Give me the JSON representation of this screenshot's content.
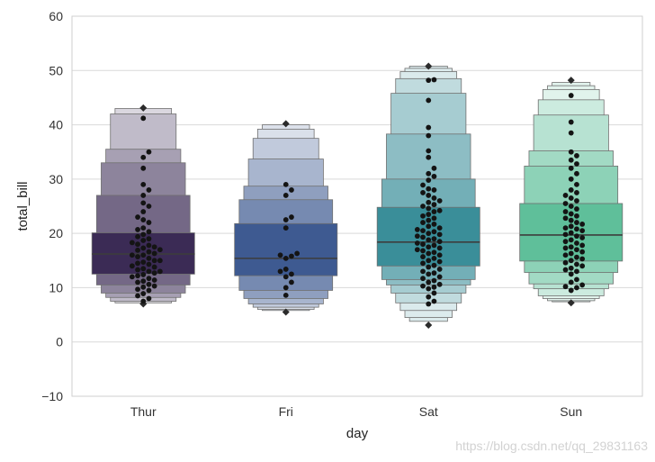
{
  "chart_data": {
    "type": "boxen",
    "xlabel": "day",
    "ylabel": "total_bill",
    "ylim": [
      -10,
      60
    ],
    "yticks": [
      -10,
      0,
      10,
      20,
      30,
      40,
      50,
      60
    ],
    "grid": true,
    "categories": [
      "Thur",
      "Fri",
      "Sat",
      "Sun"
    ],
    "colors": [
      "#3b2b55",
      "#3e5a91",
      "#3a8e99",
      "#5fbf9a"
    ],
    "series": [
      {
        "category": "Thur",
        "median": 16.2,
        "boxes": [
          [
            12.5,
            20.1
          ],
          [
            10.5,
            27.0
          ],
          [
            9.0,
            33.0
          ],
          [
            8.2,
            35.5
          ],
          [
            7.5,
            42.0
          ],
          [
            7.2,
            43.0
          ]
        ],
        "outliers": [
          43.1,
          7.0
        ],
        "points": [
          7.5,
          8.0,
          8.5,
          8.9,
          9.5,
          9.7,
          10.1,
          10.3,
          10.6,
          11.0,
          11.2,
          11.4,
          11.7,
          12.0,
          12.2,
          12.4,
          12.7,
          13.0,
          13.0,
          13.3,
          13.5,
          13.8,
          14.0,
          14.3,
          14.5,
          14.7,
          15.0,
          15.0,
          15.4,
          15.7,
          16.0,
          16.0,
          16.3,
          16.6,
          16.9,
          17.0,
          17.3,
          17.5,
          17.8,
          18.0,
          18.3,
          18.7,
          19.0,
          19.4,
          19.8,
          20.3,
          20.7,
          21.0,
          22.0,
          22.5,
          23.0,
          24.0,
          25.0,
          25.6,
          27.0,
          28.0,
          29.0,
          32.0,
          34.0,
          35.0,
          41.2
        ]
      },
      {
        "category": "Fri",
        "median": 15.4,
        "boxes": [
          [
            12.2,
            21.8
          ],
          [
            9.5,
            26.2
          ],
          [
            8.0,
            28.7
          ],
          [
            7.0,
            33.7
          ],
          [
            6.4,
            37.5
          ],
          [
            6.0,
            39.2
          ],
          [
            5.8,
            40.0
          ]
        ],
        "outliers": [
          40.2,
          5.5
        ],
        "points": [
          8.6,
          10.0,
          11.0,
          12.0,
          12.5,
          13.0,
          13.4,
          15.4,
          15.8,
          16.0,
          16.3,
          21.0,
          22.5,
          23.0,
          27.0,
          28.0,
          29.0
        ]
      },
      {
        "category": "Sat",
        "median": 18.4,
        "boxes": [
          [
            14.0,
            24.8
          ],
          [
            11.5,
            30.0
          ],
          [
            10.5,
            38.3
          ],
          [
            9.0,
            45.8
          ],
          [
            7.2,
            48.5
          ],
          [
            5.8,
            49.8
          ],
          [
            4.5,
            50.4
          ],
          [
            3.8,
            50.8
          ]
        ],
        "outliers": [
          50.8,
          3.1
        ],
        "points": [
          7.0,
          7.5,
          8.3,
          9.0,
          9.8,
          10.1,
          10.3,
          10.6,
          11.0,
          11.3,
          11.7,
          12.0,
          12.5,
          12.7,
          13.0,
          13.4,
          13.8,
          14.1,
          14.5,
          14.8,
          15.0,
          15.4,
          15.7,
          16.0,
          16.3,
          16.5,
          16.8,
          17.0,
          17.3,
          17.5,
          17.8,
          18.0,
          18.2,
          18.5,
          18.8,
          19.0,
          19.3,
          19.5,
          19.8,
          20.0,
          20.3,
          20.5,
          20.7,
          21.0,
          21.3,
          21.7,
          22.0,
          22.4,
          22.8,
          23.2,
          23.5,
          24.0,
          24.2,
          24.6,
          25.0,
          25.3,
          25.7,
          26.0,
          26.5,
          27.0,
          27.5,
          28.0,
          28.2,
          28.9,
          29.8,
          30.5,
          31.0,
          32.0,
          34.0,
          35.2,
          38.0,
          39.5,
          44.5,
          48.2,
          48.3
        ]
      },
      {
        "category": "Sun",
        "median": 19.7,
        "boxes": [
          [
            14.9,
            25.5
          ],
          [
            12.8,
            32.4
          ],
          [
            10.7,
            35.2
          ],
          [
            9.8,
            41.8
          ],
          [
            8.5,
            44.6
          ],
          [
            8.0,
            46.5
          ],
          [
            7.6,
            47.2
          ],
          [
            7.4,
            47.8
          ]
        ],
        "outliers": [
          48.2,
          7.2
        ],
        "points": [
          9.5,
          10.0,
          10.2,
          10.5,
          11.0,
          11.5,
          12.5,
          13.0,
          13.3,
          13.6,
          14.0,
          14.3,
          14.6,
          15.0,
          15.3,
          15.6,
          16.0,
          16.3,
          16.6,
          17.0,
          17.3,
          17.5,
          17.8,
          18.2,
          18.5,
          18.8,
          19.2,
          19.5,
          19.8,
          20.1,
          20.5,
          20.8,
          21.0,
          21.3,
          21.7,
          22.0,
          22.4,
          22.8,
          23.2,
          23.6,
          24.0,
          24.5,
          25.0,
          25.5,
          26.0,
          26.5,
          27.0,
          27.5,
          28.0,
          29.0,
          30.0,
          31.0,
          32.0,
          32.8,
          33.5,
          34.3,
          35.0,
          38.5,
          40.5,
          45.4
        ]
      }
    ]
  },
  "watermark": "https://blog.csdn.net/qq_29831163"
}
